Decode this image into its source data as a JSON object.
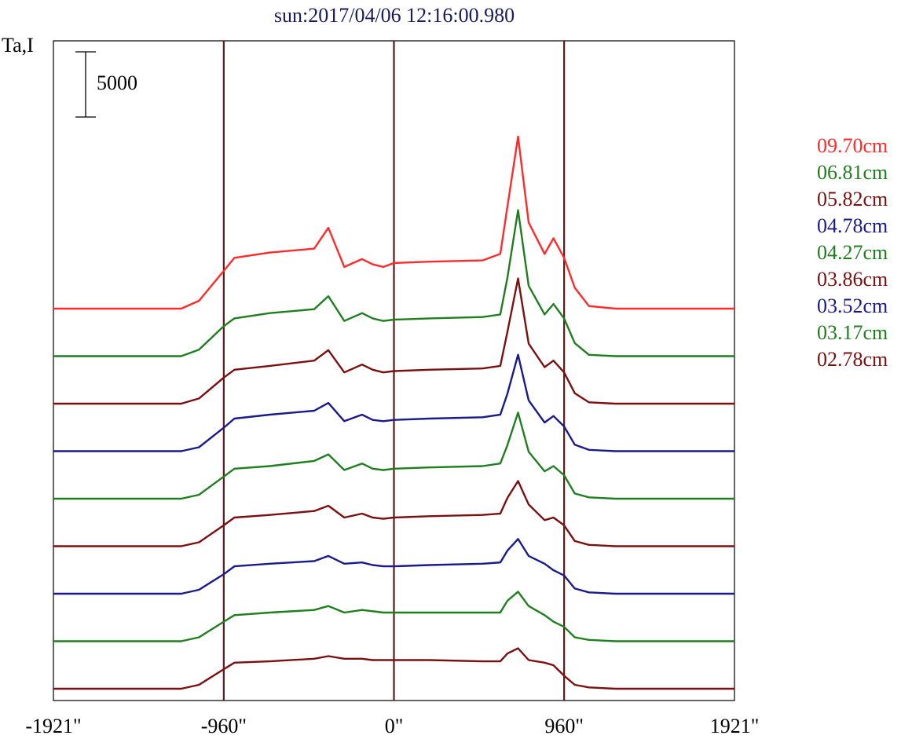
{
  "chart_data": {
    "type": "line",
    "title": "sun:2017/04/06 12:16:00.980",
    "ylabel": "Ta,I",
    "scale_bar_label": "5000",
    "x_tick_labels": [
      "-1921\"",
      "-960\"",
      "0\"",
      "960\"",
      "1921\""
    ],
    "x_ticks": [
      -1921,
      -960,
      0,
      960,
      1921
    ],
    "xlim": [
      -1921,
      1921
    ],
    "vertical_lines": [
      -960,
      0,
      960
    ],
    "vertical_line_color": "#5a1a1a",
    "grid": false,
    "legend_position": "right",
    "series": [
      {
        "name": "09.70cm",
        "color": "#ff2a2a",
        "x": [
          -1921,
          -1400,
          -1200,
          -1100,
          -960,
          -900,
          -700,
          -450,
          -370,
          -280,
          -180,
          -120,
          -60,
          0,
          200,
          500,
          600,
          640,
          700,
          760,
          850,
          900,
          960,
          1020,
          1100,
          1250,
          1500,
          1921
        ],
        "y": [
          0,
          0,
          0,
          600,
          2900,
          3900,
          4300,
          4600,
          6200,
          3200,
          3800,
          3400,
          3200,
          3500,
          3600,
          3700,
          4200,
          7800,
          13200,
          6600,
          4200,
          5400,
          3900,
          1600,
          200,
          0,
          0,
          0
        ]
      },
      {
        "name": "06.81cm",
        "color": "#1f7f1f",
        "x": [
          -1921,
          -1200,
          -1100,
          -960,
          -900,
          -700,
          -450,
          -370,
          -280,
          -180,
          -120,
          -60,
          0,
          200,
          500,
          600,
          640,
          700,
          760,
          850,
          900,
          960,
          1020,
          1100,
          1250,
          1500,
          1921
        ],
        "y": [
          0,
          0,
          500,
          2300,
          2900,
          3300,
          3600,
          4600,
          2700,
          3300,
          2900,
          2700,
          2800,
          2900,
          3000,
          3200,
          6000,
          11200,
          5400,
          3200,
          4000,
          2900,
          1000,
          100,
          0,
          0,
          0
        ]
      },
      {
        "name": "05.82cm",
        "color": "#7a1010",
        "x": [
          -1921,
          -1200,
          -1100,
          -960,
          -900,
          -700,
          -450,
          -370,
          -280,
          -180,
          -120,
          -60,
          0,
          200,
          500,
          600,
          640,
          700,
          760,
          850,
          900,
          960,
          1020,
          1100,
          1250,
          1500,
          1921
        ],
        "y": [
          0,
          0,
          400,
          2000,
          2600,
          2900,
          3300,
          4100,
          2400,
          3000,
          2600,
          2400,
          2500,
          2600,
          2700,
          2900,
          5500,
          9600,
          4600,
          2800,
          3300,
          2400,
          800,
          100,
          0,
          0,
          0
        ]
      },
      {
        "name": "04.78cm",
        "color": "#1a1a8a",
        "x": [
          -1921,
          -1200,
          -1100,
          -960,
          -900,
          -700,
          -450,
          -370,
          -280,
          -180,
          -120,
          -60,
          0,
          200,
          500,
          600,
          640,
          700,
          760,
          850,
          900,
          960,
          1020,
          1100,
          1250,
          1500,
          1921
        ],
        "y": [
          0,
          0,
          300,
          1800,
          2500,
          2800,
          3100,
          3700,
          2300,
          2800,
          2400,
          2300,
          2400,
          2500,
          2600,
          2800,
          4400,
          7400,
          3900,
          2200,
          2700,
          1900,
          500,
          100,
          0,
          0,
          0
        ]
      },
      {
        "name": "04.27cm",
        "color": "#1f7f1f",
        "x": [
          -1921,
          -1200,
          -1100,
          -960,
          -900,
          -700,
          -450,
          -370,
          -280,
          -180,
          -120,
          -60,
          0,
          200,
          500,
          600,
          640,
          700,
          760,
          850,
          900,
          960,
          1020,
          1100,
          1250,
          1500,
          1921
        ],
        "y": [
          0,
          0,
          300,
          1700,
          2300,
          2500,
          2900,
          3400,
          2200,
          2700,
          2300,
          2200,
          2300,
          2400,
          2500,
          2700,
          4100,
          6600,
          3600,
          2100,
          2500,
          1800,
          400,
          100,
          0,
          0,
          0
        ]
      },
      {
        "name": "03.86cm",
        "color": "#7a1010",
        "x": [
          -1921,
          -1200,
          -1100,
          -960,
          -900,
          -700,
          -450,
          -370,
          -280,
          -180,
          -120,
          -60,
          0,
          200,
          500,
          600,
          640,
          700,
          760,
          850,
          900,
          960,
          1020,
          1100,
          1250,
          1500,
          1921
        ],
        "y": [
          0,
          0,
          300,
          1600,
          2200,
          2400,
          2700,
          3100,
          2200,
          2500,
          2200,
          2100,
          2200,
          2300,
          2400,
          2500,
          3700,
          5000,
          3200,
          2000,
          2200,
          1600,
          400,
          100,
          0,
          0,
          0
        ]
      },
      {
        "name": "03.52cm",
        "color": "#1a1a8a",
        "x": [
          -1921,
          -1200,
          -1100,
          -960,
          -900,
          -700,
          -450,
          -370,
          -280,
          -180,
          -120,
          -60,
          0,
          200,
          500,
          600,
          640,
          700,
          760,
          850,
          900,
          960,
          1020,
          1100,
          1250,
          1500,
          1921
        ],
        "y": [
          0,
          0,
          300,
          1500,
          2100,
          2300,
          2500,
          2900,
          2300,
          2400,
          2200,
          2100,
          2100,
          2200,
          2300,
          2400,
          3300,
          4200,
          2900,
          2300,
          1800,
          1400,
          400,
          100,
          0,
          0,
          0
        ]
      },
      {
        "name": "03.17cm",
        "color": "#1f7f1f",
        "x": [
          -1921,
          -1200,
          -1100,
          -960,
          -900,
          -700,
          -450,
          -370,
          -280,
          -180,
          -120,
          -60,
          0,
          200,
          500,
          600,
          640,
          700,
          760,
          850,
          900,
          960,
          1020,
          1100,
          1250,
          1500,
          1921
        ],
        "y": [
          0,
          0,
          300,
          1500,
          2000,
          2200,
          2400,
          2700,
          2200,
          2400,
          2300,
          2200,
          2200,
          2200,
          2200,
          2200,
          3100,
          3800,
          2700,
          2000,
          1500,
          1100,
          300,
          100,
          0,
          0,
          0
        ]
      },
      {
        "name": "02.78cm",
        "color": "#7a1010",
        "x": [
          -1921,
          -1200,
          -1100,
          -960,
          -900,
          -700,
          -450,
          -370,
          -280,
          -180,
          -120,
          -60,
          0,
          200,
          500,
          600,
          640,
          700,
          760,
          850,
          900,
          960,
          1020,
          1100,
          1250,
          1500,
          1921
        ],
        "y": [
          0,
          0,
          300,
          1500,
          2000,
          2100,
          2300,
          2500,
          2300,
          2300,
          2200,
          2200,
          2200,
          2200,
          2100,
          2100,
          2700,
          3100,
          2200,
          2000,
          1800,
          1000,
          300,
          100,
          0,
          0,
          0
        ]
      }
    ],
    "series_offset": 2200
  }
}
